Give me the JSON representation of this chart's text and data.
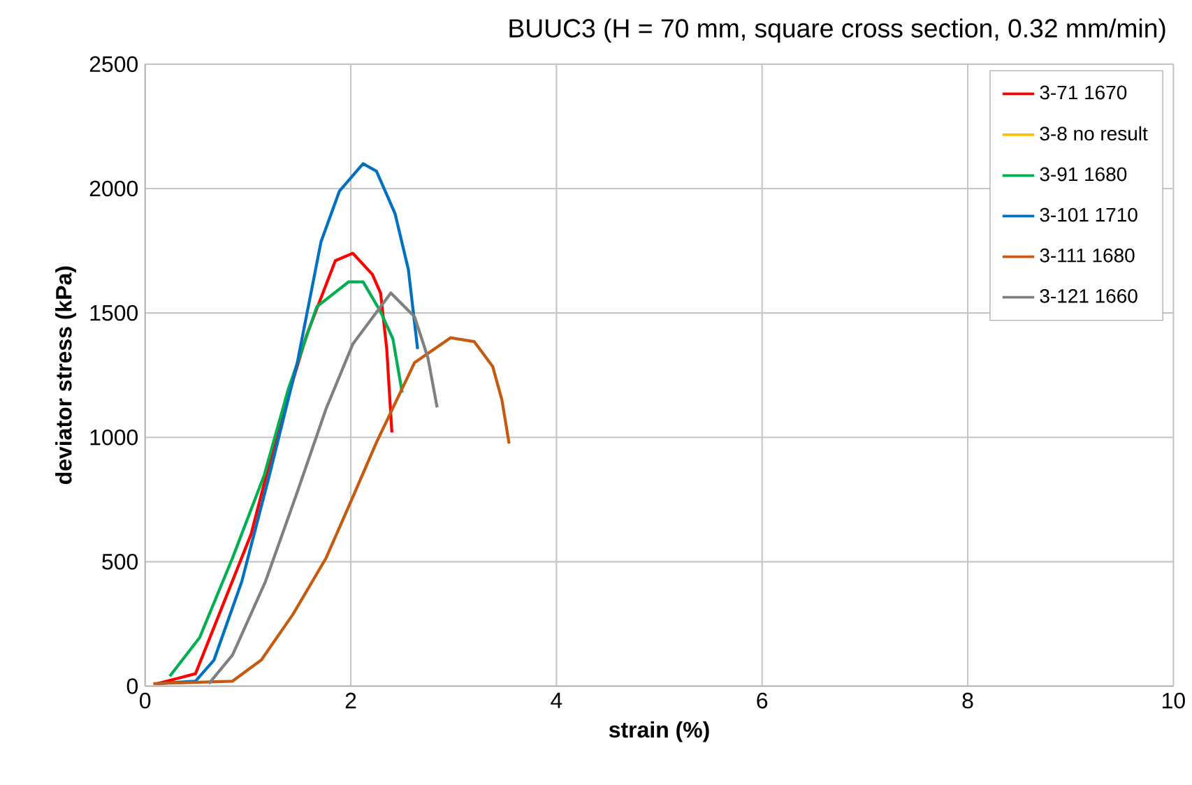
{
  "chart_data": {
    "type": "line",
    "title": "BUUC3 (H = 70 mm, square cross section, 0.32 mm/min)",
    "xlabel": "strain (%)",
    "ylabel": "deviator stress (kPa)",
    "xlim": [
      0,
      10
    ],
    "xticks": [
      0,
      2,
      4,
      6,
      8,
      10
    ],
    "ylim": [
      0,
      2500
    ],
    "yticks": [
      0,
      500,
      1000,
      1500,
      2000,
      2500
    ],
    "grid": true,
    "legend": "top right",
    "series": [
      {
        "name": "3-71 1670",
        "color": "#ff0000",
        "x": [
          0.12,
          0.49,
          0.76,
          1.03,
          1.3,
          1.57,
          1.85,
          2.02,
          2.21,
          2.29,
          2.35,
          2.4
        ],
        "values": [
          10,
          50,
          330,
          610,
          1040,
          1410,
          1710,
          1740,
          1655,
          1580,
          1355,
          1020
        ]
      },
      {
        "name": "3-8 no result",
        "color": "#ffc000"
      },
      {
        "name": "3-91 1680",
        "color": "#00b050",
        "x": [
          0.24,
          0.53,
          0.85,
          1.16,
          1.39,
          1.67,
          1.98,
          2.12,
          2.29,
          2.41,
          2.5
        ],
        "values": [
          40,
          195,
          515,
          850,
          1190,
          1525,
          1625,
          1625,
          1505,
          1395,
          1180
        ]
      },
      {
        "name": "3-101 1710",
        "color": "#0070c0",
        "x": [
          0.12,
          0.49,
          0.67,
          0.94,
          1.21,
          1.48,
          1.71,
          1.89,
          2.12,
          2.25,
          2.43,
          2.56,
          2.65
        ],
        "values": [
          10,
          20,
          105,
          420,
          850,
          1300,
          1785,
          1990,
          2100,
          2070,
          1900,
          1675,
          1355
        ]
      },
      {
        "name": "3-111 1680",
        "color": "#c55a11",
        "x": [
          0.08,
          0.85,
          1.13,
          1.44,
          1.76,
          2.02,
          2.25,
          2.62,
          2.97,
          3.2,
          3.38,
          3.47,
          3.54
        ],
        "values": [
          10,
          20,
          105,
          290,
          515,
          760,
          980,
          1300,
          1400,
          1385,
          1285,
          1150,
          975
        ]
      },
      {
        "name": "3-121 1660",
        "color": "#808080",
        "x": [
          0.62,
          0.85,
          1.17,
          1.48,
          1.76,
          2.02,
          2.39,
          2.62,
          2.75,
          2.84
        ],
        "values": [
          10,
          125,
          420,
          780,
          1115,
          1375,
          1580,
          1485,
          1320,
          1120
        ]
      }
    ]
  }
}
